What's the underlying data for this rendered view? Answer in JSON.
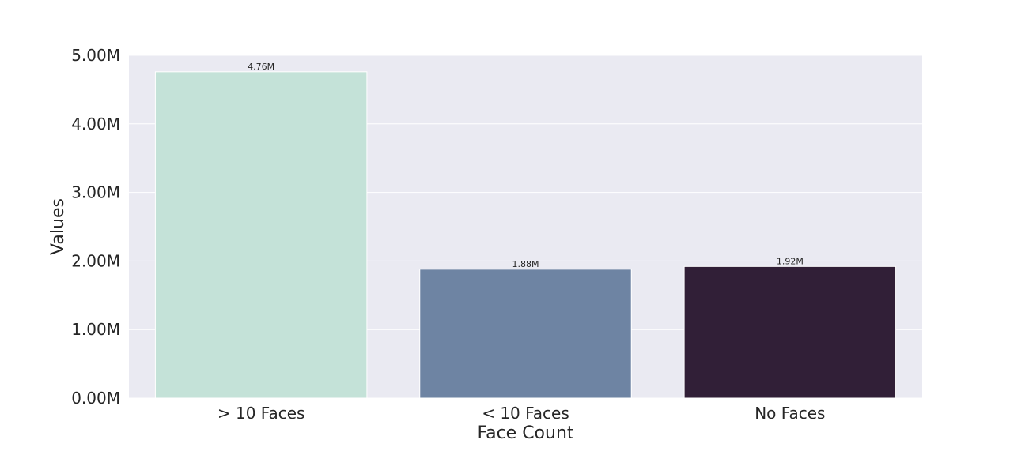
{
  "chart_data": {
    "type": "bar",
    "title": "",
    "xlabel": "Face Count",
    "ylabel": "Values",
    "categories": [
      "> 10 Faces",
      "< 10 Faces",
      "No Faces"
    ],
    "values": [
      4760000,
      1880000,
      1920000
    ],
    "value_labels": [
      "4.76M",
      "1.88M",
      "1.92M"
    ],
    "colors": [
      "#c4e2d8",
      "#6e84a3",
      "#311f37"
    ],
    "ylim": [
      0,
      5000000
    ],
    "yticks": [
      0,
      1000000,
      2000000,
      3000000,
      4000000,
      5000000
    ],
    "ytick_labels": [
      "0.00M",
      "1.00M",
      "2.00M",
      "3.00M",
      "4.00M",
      "5.00M"
    ],
    "grid": true,
    "background": "#eaeaf2"
  }
}
